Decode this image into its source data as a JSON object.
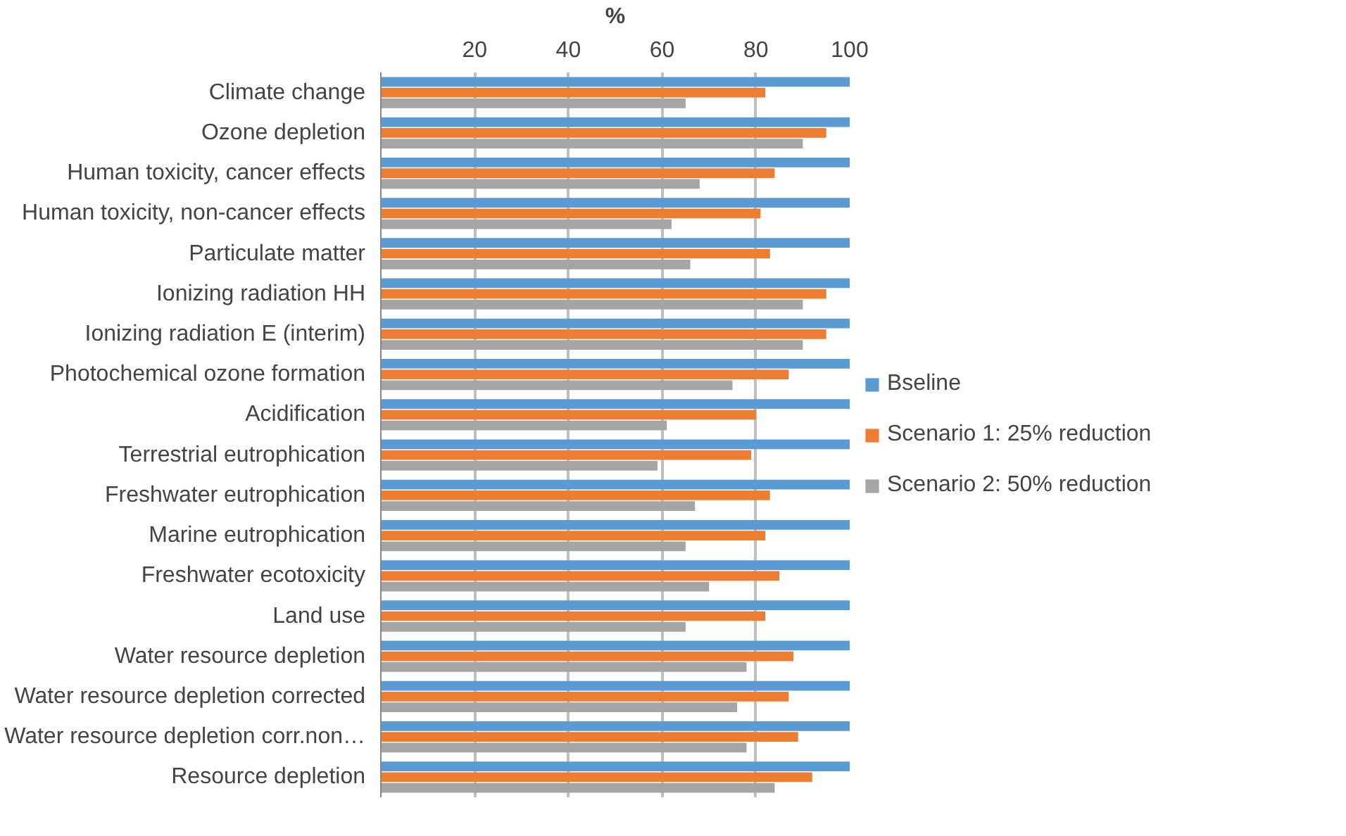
{
  "chart_data": {
    "type": "bar",
    "orientation": "horizontal",
    "xlabel": "%",
    "categories": [
      "Climate change",
      "Ozone depletion",
      "Human toxicity, cancer effects",
      "Human toxicity, non-cancer effects",
      "Particulate matter",
      "Ionizing radiation HH",
      "Ionizing radiation E (interim)",
      "Photochemical ozone formation",
      "Acidification",
      "Terrestrial eutrophication",
      "Freshwater eutrophication",
      "Marine eutrophication",
      "Freshwater ecotoxicity",
      "Land use",
      "Water resource depletion",
      "Water resource depletion corrected",
      "Water resource depletion corr.non…",
      "Resource depletion"
    ],
    "series": [
      {
        "name": "Bseline",
        "color": "#5b9bd5",
        "values": [
          100,
          100,
          100,
          100,
          100,
          100,
          100,
          100,
          100,
          100,
          100,
          100,
          100,
          100,
          100,
          100,
          100,
          100
        ]
      },
      {
        "name": "Scenario 1: 25% reduction",
        "color": "#ed7d31",
        "values": [
          82,
          95,
          84,
          81,
          83,
          95,
          95,
          87,
          80,
          79,
          83,
          82,
          85,
          82,
          88,
          87,
          89,
          92
        ]
      },
      {
        "name": "Scenario 2: 50% reduction",
        "color": "#a5a5a5",
        "values": [
          65,
          90,
          68,
          62,
          66,
          90,
          90,
          75,
          61,
          59,
          67,
          65,
          70,
          65,
          78,
          76,
          78,
          84
        ]
      }
    ],
    "xlim": [
      0,
      100
    ],
    "xticks": [
      20,
      40,
      60,
      80,
      100
    ],
    "grid": "x",
    "legend": "right"
  }
}
